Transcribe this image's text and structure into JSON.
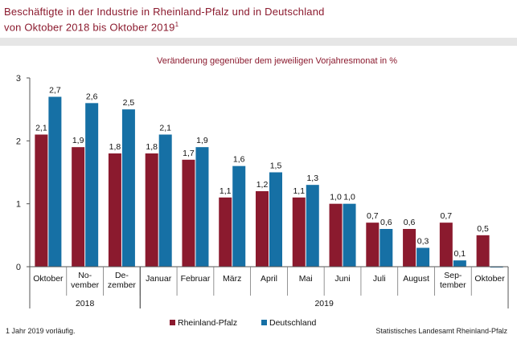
{
  "title": {
    "line1": "Beschäftigte in der Industrie in Rheinland-Pfalz und in Deutschland",
    "line2": "von Oktober 2018 bis Oktober 2019",
    "footnote_marker": "1"
  },
  "colors": {
    "rlp": "#8b1a2e",
    "de": "#1670a5",
    "title": "#8b1a2e"
  },
  "chart_data": {
    "type": "bar",
    "subtitle": "Veränderung gegenüber dem jeweiligen Vorjahresmonat in %",
    "categories": [
      [
        "Oktober"
      ],
      [
        "No-",
        "vember"
      ],
      [
        "De-",
        "zember"
      ],
      [
        "Januar"
      ],
      [
        "Februar"
      ],
      [
        "März"
      ],
      [
        "April"
      ],
      [
        "Mai"
      ],
      [
        "Juni"
      ],
      [
        "Juli"
      ],
      [
        "August"
      ],
      [
        "Sep-",
        "tember"
      ],
      [
        "Oktober"
      ]
    ],
    "series": [
      {
        "name": "Rheinland-Pfalz",
        "values": [
          2.1,
          1.9,
          1.8,
          1.8,
          1.7,
          1.1,
          1.2,
          1.1,
          1.0,
          0.7,
          0.6,
          0.7,
          0.5
        ],
        "labels": [
          "2,1",
          "1,9",
          "1,8",
          "1,8",
          "1,7",
          "1,1",
          "1,2",
          "1,1",
          "1,0",
          "0,7",
          "0,6",
          "0,7",
          "0,5"
        ]
      },
      {
        "name": "Deutschland",
        "values": [
          2.7,
          2.6,
          2.5,
          2.1,
          1.9,
          1.6,
          1.5,
          1.3,
          1.0,
          0.6,
          0.3,
          0.1,
          -0.01
        ],
        "labels": [
          "2,7",
          "2,6",
          "2,5",
          "2,1",
          "1,9",
          "1,6",
          "1,5",
          "1,3",
          "1,0",
          "0,6",
          "0,3",
          "0,1",
          ""
        ]
      }
    ],
    "ylim": [
      0,
      3
    ],
    "yticks": [
      "0",
      "1",
      "2",
      "3"
    ],
    "years": [
      {
        "label": "2018",
        "from": 0,
        "to": 2
      },
      {
        "label": "2019",
        "from": 3,
        "to": 12
      }
    ],
    "legend_position": "bottom"
  },
  "footer": {
    "left": "1 Jahr 2019 vorläufig.",
    "right": "Statistisches Landesamt Rheinland-Pfalz"
  }
}
